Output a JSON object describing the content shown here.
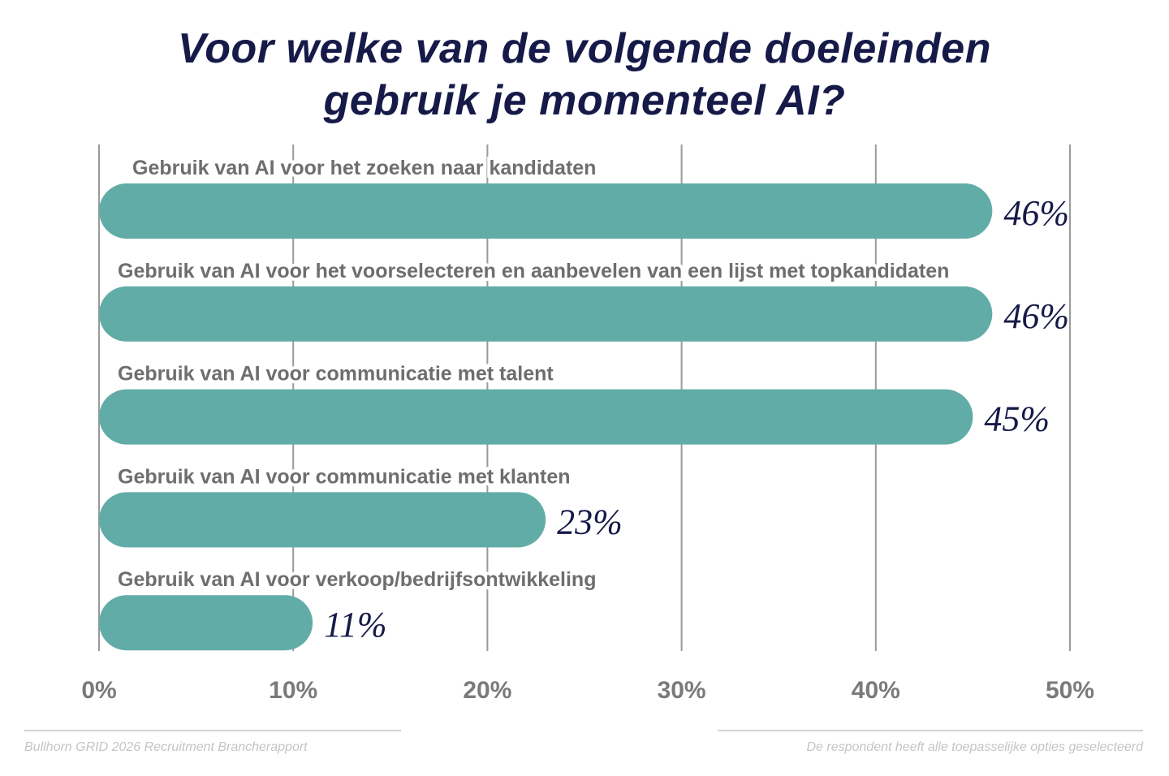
{
  "chart_data": {
    "type": "bar",
    "orientation": "horizontal",
    "title": "Voor welke van de volgende doeleinden gebruik je momenteel AI?",
    "title_lines": [
      "Voor welke van de volgende doeleinden",
      "gebruik je momenteel AI?"
    ],
    "categories": [
      "Gebruik van AI voor het zoeken naar kandidaten",
      "Gebruik van AI voor het voorselecteren en aanbevelen van een lijst met topkandidaten",
      "Gebruik van AI voor communicatie met talent",
      "Gebruik van AI voor communicatie met klanten",
      "Gebruik van AI voor verkoop/bedrijfsontwikkeling"
    ],
    "values": [
      46,
      46,
      45,
      23,
      11
    ],
    "data_labels": [
      "46%",
      "46%",
      "45%",
      "23%",
      "11%"
    ],
    "xlim": [
      0,
      50
    ],
    "x_ticks": [
      0,
      10,
      20,
      30,
      40,
      50
    ],
    "x_tick_labels": [
      "0%",
      "10%",
      "20%",
      "30%",
      "40%",
      "50%"
    ],
    "grid": true,
    "colors": {
      "bar": "#62aca7",
      "title": "#161a48",
      "value_label": "#161a48",
      "category_label": "#6e6e6e",
      "grid": "#9a9a9a"
    }
  },
  "footer": {
    "source": "Bullhorn GRID 2026 Recruitment Brancherapport",
    "note": "De respondent heeft alle toepasselijke opties geselecteerd"
  }
}
